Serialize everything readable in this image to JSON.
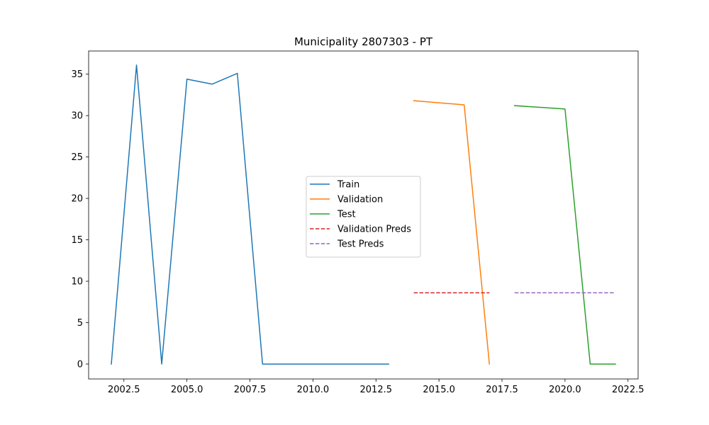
{
  "chart_data": {
    "type": "line",
    "title": "Municipality 2807303 - PT",
    "xlabel": "",
    "ylabel": "",
    "xlim": [
      2001.1,
      2022.9
    ],
    "ylim": [
      -1.8,
      37.8
    ],
    "x_ticks": [
      2002.5,
      2005.0,
      2007.5,
      2010.0,
      2012.5,
      2015.0,
      2017.5,
      2020.0,
      2022.5
    ],
    "x_tick_labels": [
      "2002.5",
      "2005.0",
      "2007.5",
      "2010.0",
      "2012.5",
      "2015.0",
      "2017.5",
      "2020.0",
      "2022.5"
    ],
    "y_ticks": [
      0,
      5,
      10,
      15,
      20,
      25,
      30,
      35
    ],
    "y_tick_labels": [
      "0",
      "5",
      "10",
      "15",
      "20",
      "25",
      "30",
      "35"
    ],
    "grid": false,
    "legend_placement": "center",
    "series": [
      {
        "name": "Train",
        "color": "#1f77b4",
        "style": "solid",
        "x": [
          2002,
          2003,
          2004,
          2005,
          2006,
          2007,
          2008,
          2009,
          2010,
          2011,
          2012,
          2013
        ],
        "y": [
          0,
          36.1,
          0,
          34.4,
          33.8,
          35.1,
          0,
          0,
          0,
          0,
          0,
          0
        ]
      },
      {
        "name": "Validation",
        "color": "#ff7f0e",
        "style": "solid",
        "x": [
          2014,
          2016,
          2017
        ],
        "y": [
          31.8,
          31.3,
          0
        ]
      },
      {
        "name": "Test",
        "color": "#2ca02c",
        "style": "solid",
        "x": [
          2018,
          2020,
          2021,
          2022
        ],
        "y": [
          31.2,
          30.8,
          0,
          0
        ]
      },
      {
        "name": "Validation Preds",
        "color": "#d62728",
        "style": "dashed",
        "x": [
          2014,
          2015,
          2016,
          2017
        ],
        "y": [
          8.6,
          8.6,
          8.6,
          8.6
        ]
      },
      {
        "name": "Test Preds",
        "color": "#9467bd",
        "style": "dashed",
        "x": [
          2018,
          2019,
          2020,
          2021,
          2022
        ],
        "y": [
          8.6,
          8.6,
          8.6,
          8.6,
          8.6
        ]
      }
    ]
  }
}
